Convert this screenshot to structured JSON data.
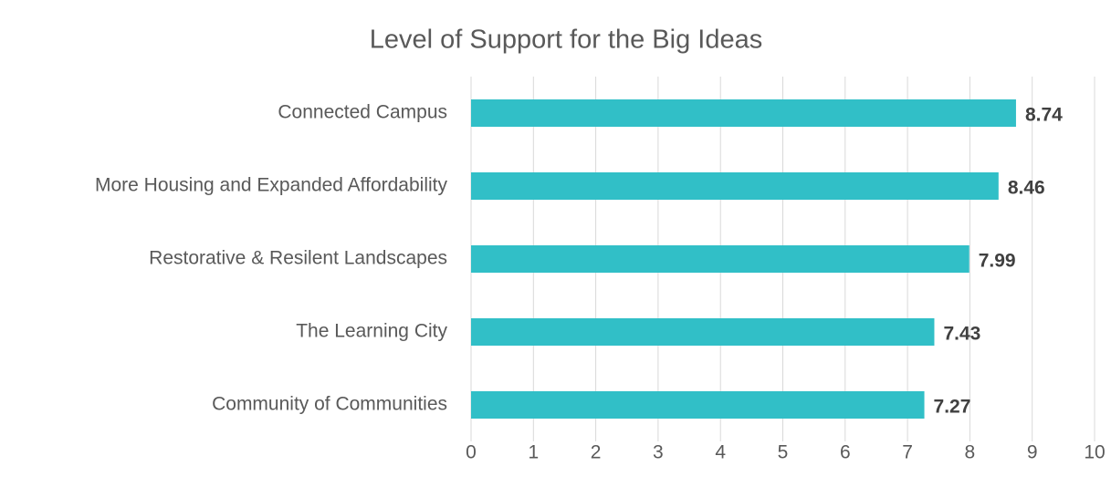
{
  "chart_data": {
    "type": "bar",
    "orientation": "horizontal",
    "title": "Level of Support for the Big Ideas",
    "categories": [
      "Connected Campus",
      "More Housing and Expanded Affordability",
      "Restorative & Resilent Landscapes",
      "The Learning City",
      "Community of Communities"
    ],
    "values": [
      8.74,
      8.46,
      7.99,
      7.43,
      7.27
    ],
    "color": "#31bfc7",
    "xlim": [
      0,
      10
    ],
    "xticks": [
      0,
      1,
      2,
      3,
      4,
      5,
      6,
      7,
      8,
      9,
      10
    ],
    "grid": true
  }
}
